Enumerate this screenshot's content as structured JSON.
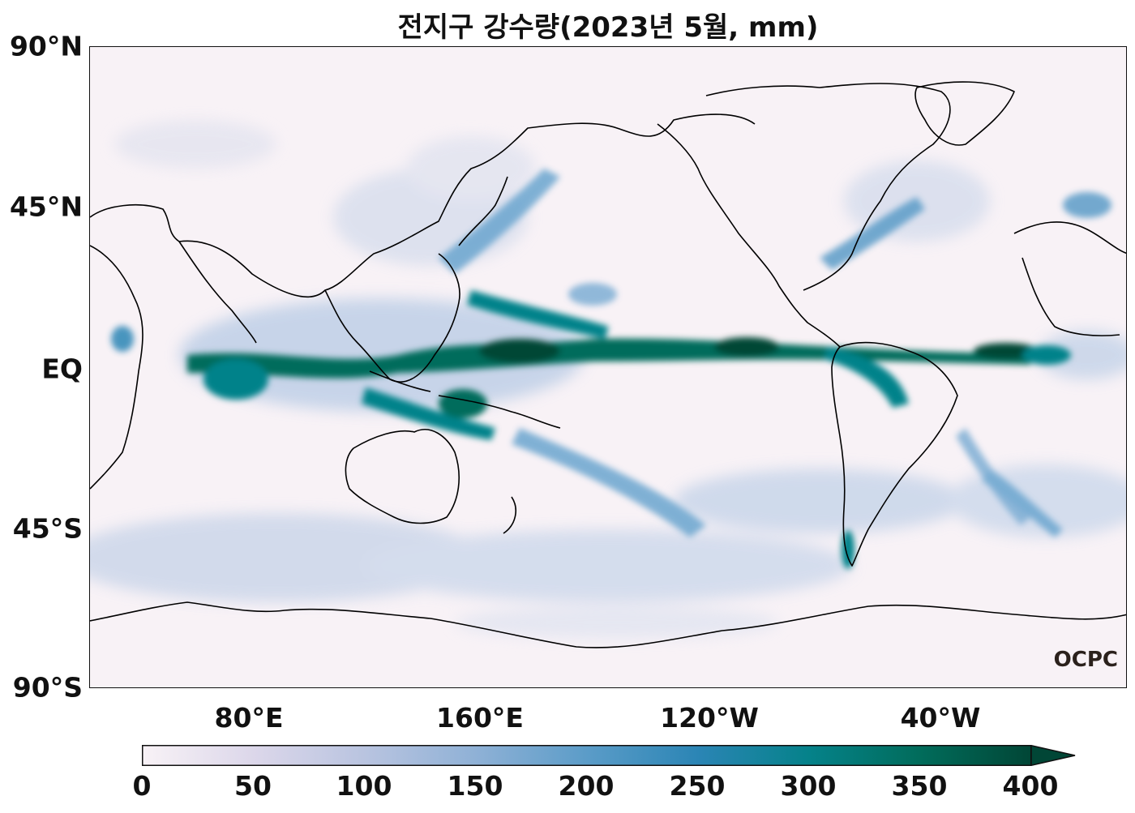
{
  "title": "전지구 강수량(2023년 5월, mm)",
  "lat_labels": [
    "90°N",
    "45°N",
    "EQ",
    "45°S",
    "90°S"
  ],
  "lon_labels": [
    "80°E",
    "160°E",
    "120°W",
    "40°W"
  ],
  "colorbar": {
    "ticks": [
      "0",
      "50",
      "100",
      "150",
      "200",
      "250",
      "300",
      "350",
      "400"
    ],
    "range": [
      0,
      400
    ],
    "extend": "max",
    "colors": [
      "#f8f2f6",
      "#dcd7ea",
      "#b9c4e0",
      "#8fb1d6",
      "#5b9cc8",
      "#2b85b5",
      "#05828a",
      "#016c5b",
      "#014636"
    ]
  },
  "logo": "OCPC"
}
